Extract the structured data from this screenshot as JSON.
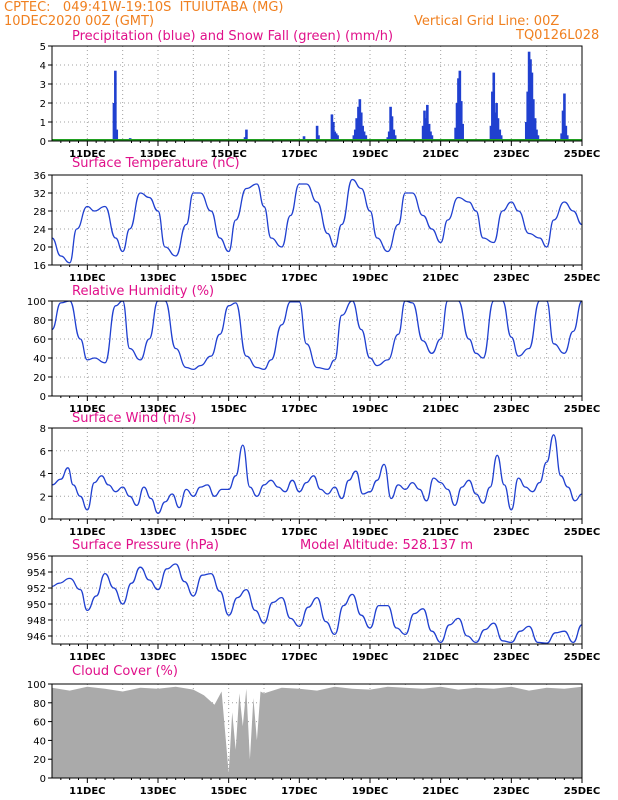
{
  "header": {
    "line1": "CPTEC:   049:41W-19:10S  ITUIUTABA (MG)",
    "line2_left": "10DEC2020 00Z (GMT)",
    "line2_right": "Vertical Grid Line: 00Z",
    "code": "TQ0126L028"
  },
  "colors": {
    "header": "#f08020",
    "title": "#e0108a",
    "series": "#2040d0",
    "snow": "#20a020",
    "cloud": "#aaaaaa",
    "grid": "#a0a0a0"
  },
  "chart_data": [
    {
      "id": "precip",
      "type": "bar",
      "title": "Precipitation (blue) and Snow Fall (green) (mm/h)",
      "ylim": [
        0,
        5
      ],
      "yticks": [
        0,
        1,
        2,
        3,
        4,
        5
      ],
      "xticks": [
        "11DEC",
        "13DEC",
        "15DEC",
        "17DEC",
        "19DEC",
        "21DEC",
        "23DEC",
        "25DEC"
      ],
      "series": [
        {
          "name": "Precipitation",
          "x": [
            1.75,
            1.79,
            1.83,
            2.17,
            2.21,
            2.25,
            5.42,
            5.46,
            5.5,
            5.54,
            6.92,
            7.13,
            7.5,
            7.54,
            7.92,
            7.96,
            8.0,
            8.04,
            8.08,
            8.54,
            8.58,
            8.62,
            8.67,
            8.71,
            8.75,
            8.79,
            8.83,
            8.88,
            9.5,
            9.54,
            9.58,
            9.62,
            9.67,
            9.71,
            10.5,
            10.54,
            10.58,
            10.62,
            10.67,
            10.71,
            10.75,
            11.42,
            11.46,
            11.5,
            11.54,
            11.58,
            11.62,
            12.42,
            12.46,
            12.5,
            12.54,
            12.58,
            12.62,
            12.67,
            12.71,
            13.42,
            13.46,
            13.5,
            13.54,
            13.58,
            13.62,
            13.67,
            13.71,
            13.75,
            14.42,
            14.46,
            14.5,
            14.54,
            14.58
          ],
          "values": [
            2.0,
            3.7,
            0.6,
            0.1,
            0.15,
            0.05,
            0.1,
            0.2,
            0.6,
            0.1,
            0.1,
            0.25,
            0.8,
            0.3,
            1.4,
            1.0,
            0.5,
            0.4,
            0.3,
            0.3,
            0.6,
            1.2,
            1.8,
            2.2,
            1.5,
            0.8,
            0.5,
            0.3,
            0.2,
            0.5,
            1.8,
            1.3,
            0.6,
            0.3,
            0.8,
            1.6,
            1.2,
            1.9,
            0.9,
            0.5,
            0.3,
            0.7,
            2.0,
            3.3,
            3.7,
            2.1,
            0.9,
            0.8,
            2.6,
            3.6,
            1.5,
            2.0,
            1.2,
            0.6,
            0.3,
            1.0,
            2.6,
            4.7,
            4.3,
            3.6,
            2.2,
            1.2,
            0.6,
            0.3,
            0.4,
            1.6,
            2.5,
            0.8,
            0.3
          ]
        },
        {
          "name": "Snow Fall",
          "x": [
            0,
            15
          ],
          "values": [
            0,
            0
          ]
        }
      ]
    },
    {
      "id": "temp",
      "type": "line",
      "title": "Surface Temperature (nC)",
      "ylim": [
        16,
        36
      ],
      "yticks": [
        16,
        20,
        24,
        28,
        32,
        36
      ],
      "xticks": [
        "11DEC",
        "13DEC",
        "15DEC",
        "17DEC",
        "19DEC",
        "21DEC",
        "23DEC",
        "25DEC"
      ],
      "x": [
        0,
        0.25,
        0.5,
        0.7,
        1.0,
        1.2,
        1.5,
        1.8,
        2.0,
        2.2,
        2.5,
        2.75,
        3.0,
        3.2,
        3.5,
        3.8,
        4.0,
        4.2,
        4.5,
        4.75,
        5.0,
        5.2,
        5.5,
        5.8,
        6.0,
        6.2,
        6.5,
        6.75,
        7.0,
        7.2,
        7.5,
        7.8,
        8.0,
        8.2,
        8.5,
        8.75,
        9.0,
        9.2,
        9.5,
        9.8,
        10.0,
        10.2,
        10.5,
        10.75,
        11.0,
        11.2,
        11.5,
        11.8,
        12.0,
        12.2,
        12.5,
        12.75,
        13.0,
        13.2,
        13.5,
        13.8,
        14.0,
        14.2,
        14.5,
        14.75,
        15.0
      ],
      "values": [
        22,
        18,
        16.5,
        24,
        29,
        28,
        29,
        22,
        19,
        24,
        32,
        31,
        28,
        20,
        18,
        25,
        32,
        32,
        28,
        22,
        19,
        26,
        33,
        34,
        29,
        22,
        20,
        27,
        34,
        34,
        30,
        23,
        20,
        25,
        35,
        33,
        28,
        22,
        19,
        25,
        32,
        32,
        27,
        24,
        21,
        26,
        31,
        30,
        28,
        22,
        21,
        28,
        30,
        28,
        23,
        22,
        20,
        26,
        30,
        28,
        25
      ]
    },
    {
      "id": "rh",
      "type": "line",
      "title": "Relative Humidity (%)",
      "ylim": [
        0,
        100
      ],
      "yticks": [
        0,
        20,
        40,
        60,
        80,
        100
      ],
      "xticks": [
        "11DEC",
        "13DEC",
        "15DEC",
        "17DEC",
        "19DEC",
        "21DEC",
        "23DEC",
        "25DEC"
      ],
      "x": [
        0,
        0.25,
        0.5,
        0.8,
        1.0,
        1.2,
        1.5,
        1.8,
        2.0,
        2.2,
        2.5,
        2.75,
        3.0,
        3.2,
        3.5,
        3.8,
        4.0,
        4.2,
        4.5,
        4.75,
        5.0,
        5.2,
        5.5,
        5.8,
        6.0,
        6.2,
        6.5,
        6.75,
        7.0,
        7.2,
        7.5,
        7.8,
        8.0,
        8.2,
        8.5,
        8.75,
        9.0,
        9.2,
        9.5,
        9.8,
        10.0,
        10.2,
        10.5,
        10.75,
        11.0,
        11.2,
        11.5,
        11.8,
        12.0,
        12.2,
        12.5,
        12.75,
        13.0,
        13.2,
        13.5,
        13.8,
        14.0,
        14.2,
        14.5,
        14.75,
        15.0
      ],
      "values": [
        70,
        98,
        100,
        60,
        38,
        40,
        35,
        95,
        100,
        50,
        38,
        60,
        100,
        100,
        50,
        30,
        28,
        32,
        42,
        65,
        95,
        98,
        42,
        30,
        28,
        38,
        75,
        99,
        99,
        55,
        30,
        28,
        38,
        85,
        100,
        70,
        40,
        32,
        38,
        65,
        100,
        98,
        58,
        45,
        60,
        100,
        100,
        60,
        45,
        40,
        100,
        100,
        62,
        42,
        50,
        100,
        100,
        55,
        45,
        68,
        100
      ]
    },
    {
      "id": "wind",
      "type": "line",
      "title": "Surface Wind (m/s)",
      "ylim": [
        0,
        8
      ],
      "yticks": [
        0,
        2,
        4,
        6,
        8
      ],
      "xticks": [
        "11DEC",
        "13DEC",
        "15DEC",
        "17DEC",
        "19DEC",
        "21DEC",
        "23DEC",
        "25DEC"
      ],
      "x": [
        0,
        0.25,
        0.45,
        0.6,
        0.8,
        1.0,
        1.2,
        1.4,
        1.6,
        1.8,
        2.0,
        2.2,
        2.4,
        2.6,
        2.8,
        3.0,
        3.2,
        3.4,
        3.6,
        3.8,
        4.0,
        4.2,
        4.4,
        4.6,
        4.8,
        5.0,
        5.2,
        5.4,
        5.6,
        5.8,
        6.0,
        6.2,
        6.4,
        6.6,
        6.8,
        7.0,
        7.2,
        7.4,
        7.6,
        7.8,
        8.0,
        8.2,
        8.4,
        8.6,
        8.8,
        9.0,
        9.2,
        9.4,
        9.6,
        9.8,
        10.0,
        10.2,
        10.4,
        10.6,
        10.8,
        11.0,
        11.2,
        11.4,
        11.6,
        11.8,
        12.0,
        12.2,
        12.4,
        12.6,
        12.8,
        13.0,
        13.2,
        13.4,
        13.6,
        13.8,
        14.0,
        14.2,
        14.4,
        14.6,
        14.8,
        15.0
      ],
      "values": [
        3,
        3.5,
        4.5,
        3.0,
        2.0,
        0.8,
        3.2,
        3.8,
        3.0,
        2.4,
        2.8,
        2.0,
        1.2,
        2.8,
        1.8,
        0.5,
        1.5,
        2.2,
        1.0,
        2.6,
        2.0,
        2.8,
        3.0,
        2.0,
        2.6,
        2.6,
        3.8,
        6.5,
        2.8,
        2.0,
        3.0,
        3.4,
        2.8,
        2.4,
        3.4,
        2.4,
        3.2,
        3.8,
        2.6,
        2.2,
        2.8,
        1.8,
        3.4,
        4.2,
        2.2,
        2.4,
        3.4,
        4.8,
        1.8,
        3.0,
        2.6,
        3.2,
        2.6,
        1.6,
        3.6,
        3.2,
        2.6,
        1.2,
        2.8,
        3.4,
        2.2,
        1.4,
        2.8,
        5.6,
        3.0,
        0.8,
        3.6,
        2.8,
        2.4,
        3.2,
        5.0,
        7.4,
        3.8,
        2.8,
        1.6,
        2.2
      ]
    },
    {
      "id": "pres",
      "type": "line",
      "title": "Surface Pressure (hPa)",
      "annotation": "Model Altitude: 528.137 m",
      "ylim": [
        945,
        956
      ],
      "yticks": [
        946,
        948,
        950,
        952,
        954,
        956
      ],
      "xticks": [
        "11DEC",
        "13DEC",
        "15DEC",
        "17DEC",
        "19DEC",
        "21DEC",
        "23DEC",
        "25DEC"
      ],
      "x": [
        0,
        0.2,
        0.5,
        0.8,
        1.0,
        1.25,
        1.5,
        1.75,
        2.0,
        2.25,
        2.5,
        2.75,
        3.0,
        3.25,
        3.5,
        3.75,
        4.0,
        4.25,
        4.5,
        4.75,
        5.0,
        5.25,
        5.5,
        5.75,
        6.0,
        6.25,
        6.5,
        6.75,
        7.0,
        7.25,
        7.5,
        7.75,
        8.0,
        8.25,
        8.5,
        8.75,
        9.0,
        9.25,
        9.5,
        9.75,
        10.0,
        10.25,
        10.5,
        10.75,
        11.0,
        11.25,
        11.5,
        11.75,
        12.0,
        12.25,
        12.5,
        12.75,
        13.0,
        13.25,
        13.5,
        13.75,
        14.0,
        14.25,
        14.5,
        14.75,
        15.0
      ],
      "values": [
        952.2,
        952.6,
        953.2,
        951.8,
        949.2,
        951,
        953.8,
        952,
        950,
        952.6,
        954.6,
        953,
        951.8,
        954.4,
        955,
        952.8,
        951,
        953.6,
        953.8,
        951.6,
        948.6,
        950.8,
        951.8,
        949.2,
        947.6,
        950.2,
        950.8,
        948.2,
        947.2,
        949.6,
        950.8,
        947.8,
        946.2,
        949.8,
        951.2,
        948.6,
        947,
        949.8,
        949.8,
        947,
        946.2,
        948.8,
        949.4,
        946.6,
        945.2,
        947.4,
        948.2,
        946,
        945.2,
        946.8,
        947.6,
        945.4,
        945.2,
        946.6,
        947.2,
        945.2,
        945.1,
        946.4,
        946.6,
        945.2,
        947.4
      ]
    },
    {
      "id": "cloud",
      "type": "area",
      "title": "Cloud Cover (%)",
      "ylim": [
        0,
        100
      ],
      "yticks": [
        0,
        20,
        40,
        60,
        80,
        100
      ],
      "xticks": [
        "11DEC",
        "13DEC",
        "15DEC",
        "17DEC",
        "19DEC",
        "21DEC",
        "23DEC",
        "25DEC"
      ],
      "x": [
        0,
        0.5,
        1.0,
        1.5,
        2.0,
        2.5,
        3.0,
        3.5,
        4.0,
        4.3,
        4.6,
        4.8,
        5.0,
        5.1,
        5.2,
        5.3,
        5.4,
        5.5,
        5.6,
        5.7,
        5.8,
        5.9,
        6.0,
        6.5,
        7.0,
        7.5,
        8.0,
        8.5,
        9.0,
        9.5,
        10.0,
        10.5,
        11.0,
        11.5,
        12.0,
        12.5,
        13.0,
        13.5,
        14.0,
        14.5,
        15.0
      ],
      "values": [
        96,
        93,
        97,
        95,
        92,
        96,
        95,
        97,
        94,
        88,
        78,
        92,
        5,
        70,
        30,
        90,
        55,
        95,
        20,
        85,
        40,
        92,
        90,
        96,
        95,
        93,
        97,
        95,
        94,
        97,
        96,
        95,
        97,
        94,
        96,
        95,
        97,
        93,
        96,
        95,
        97
      ]
    }
  ]
}
